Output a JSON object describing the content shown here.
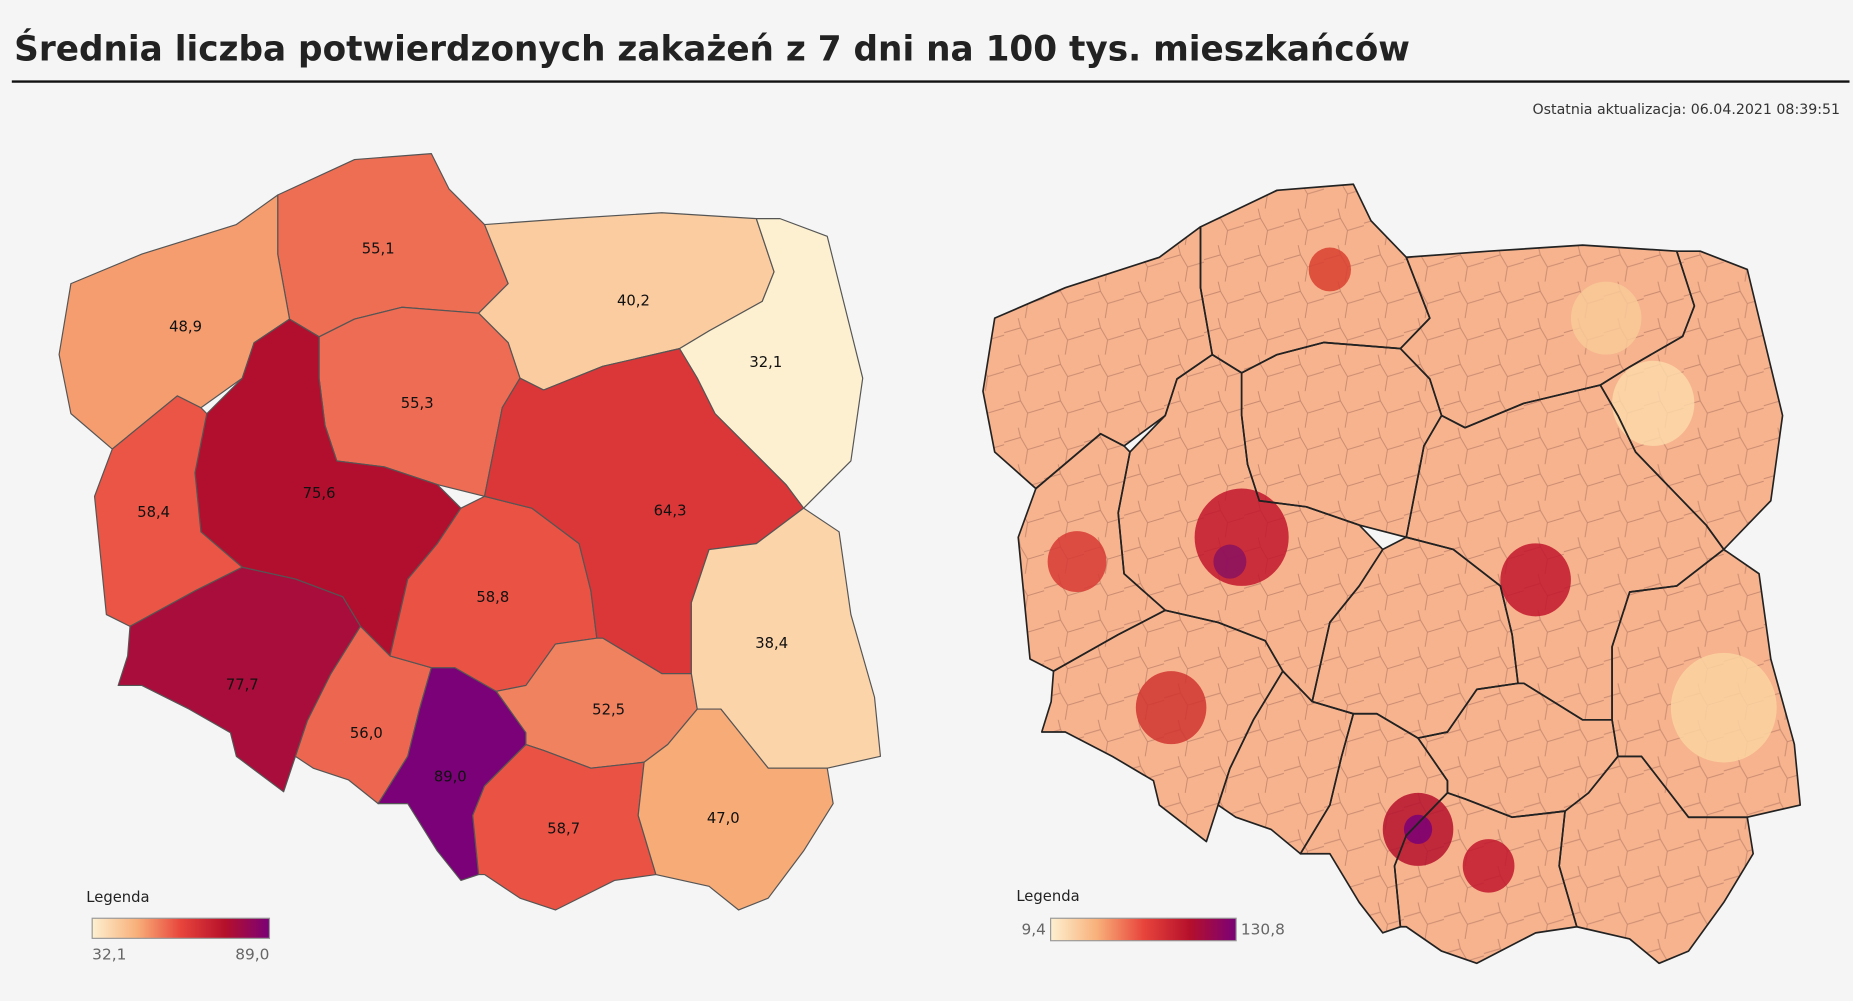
{
  "header": {
    "title": "Średnia liczba potwierdzonych zakażeń z 7 dni na 100 tys. mieszkańców",
    "updated": "Ostatnia aktualizacja: 06.04.2021 08:39:51"
  },
  "chart_data": [
    {
      "type": "choropleth",
      "values": [
        55.1,
        48.9,
        40.2,
        32.1,
        55.3,
        75.6,
        58.4,
        77.7,
        56.0,
        89.0,
        58.8,
        64.3,
        52.5,
        38.4,
        58.7,
        47.0
      ],
      "value_labels": [
        "55,1",
        "48,9",
        "40,2",
        "32,1",
        "55,3",
        "75,6",
        "58,4",
        "77,7",
        "56,0",
        "89,0",
        "58,8",
        "64,3",
        "52,5",
        "38,4",
        "58,7",
        "47,0"
      ],
      "legend": {
        "title": "Legenda",
        "range": [
          {
            "value": 32.1,
            "label": "32,1"
          },
          {
            "value": 89.0,
            "label": "89,0"
          }
        ],
        "colors": [
          "#fdf0d0",
          "#f8b07a",
          "#e8453c",
          "#b5102b",
          "#7a0177"
        ]
      }
    },
    {
      "type": "choropleth",
      "legend": {
        "title": "Legenda",
        "range": [
          {
            "value": 9.4,
            "label": "9,4"
          },
          {
            "value": 130.8,
            "label": "130,8"
          }
        ],
        "colors": [
          "#fdf0d0",
          "#f8b07a",
          "#e8453c",
          "#b5102b",
          "#7a0177"
        ]
      }
    }
  ]
}
